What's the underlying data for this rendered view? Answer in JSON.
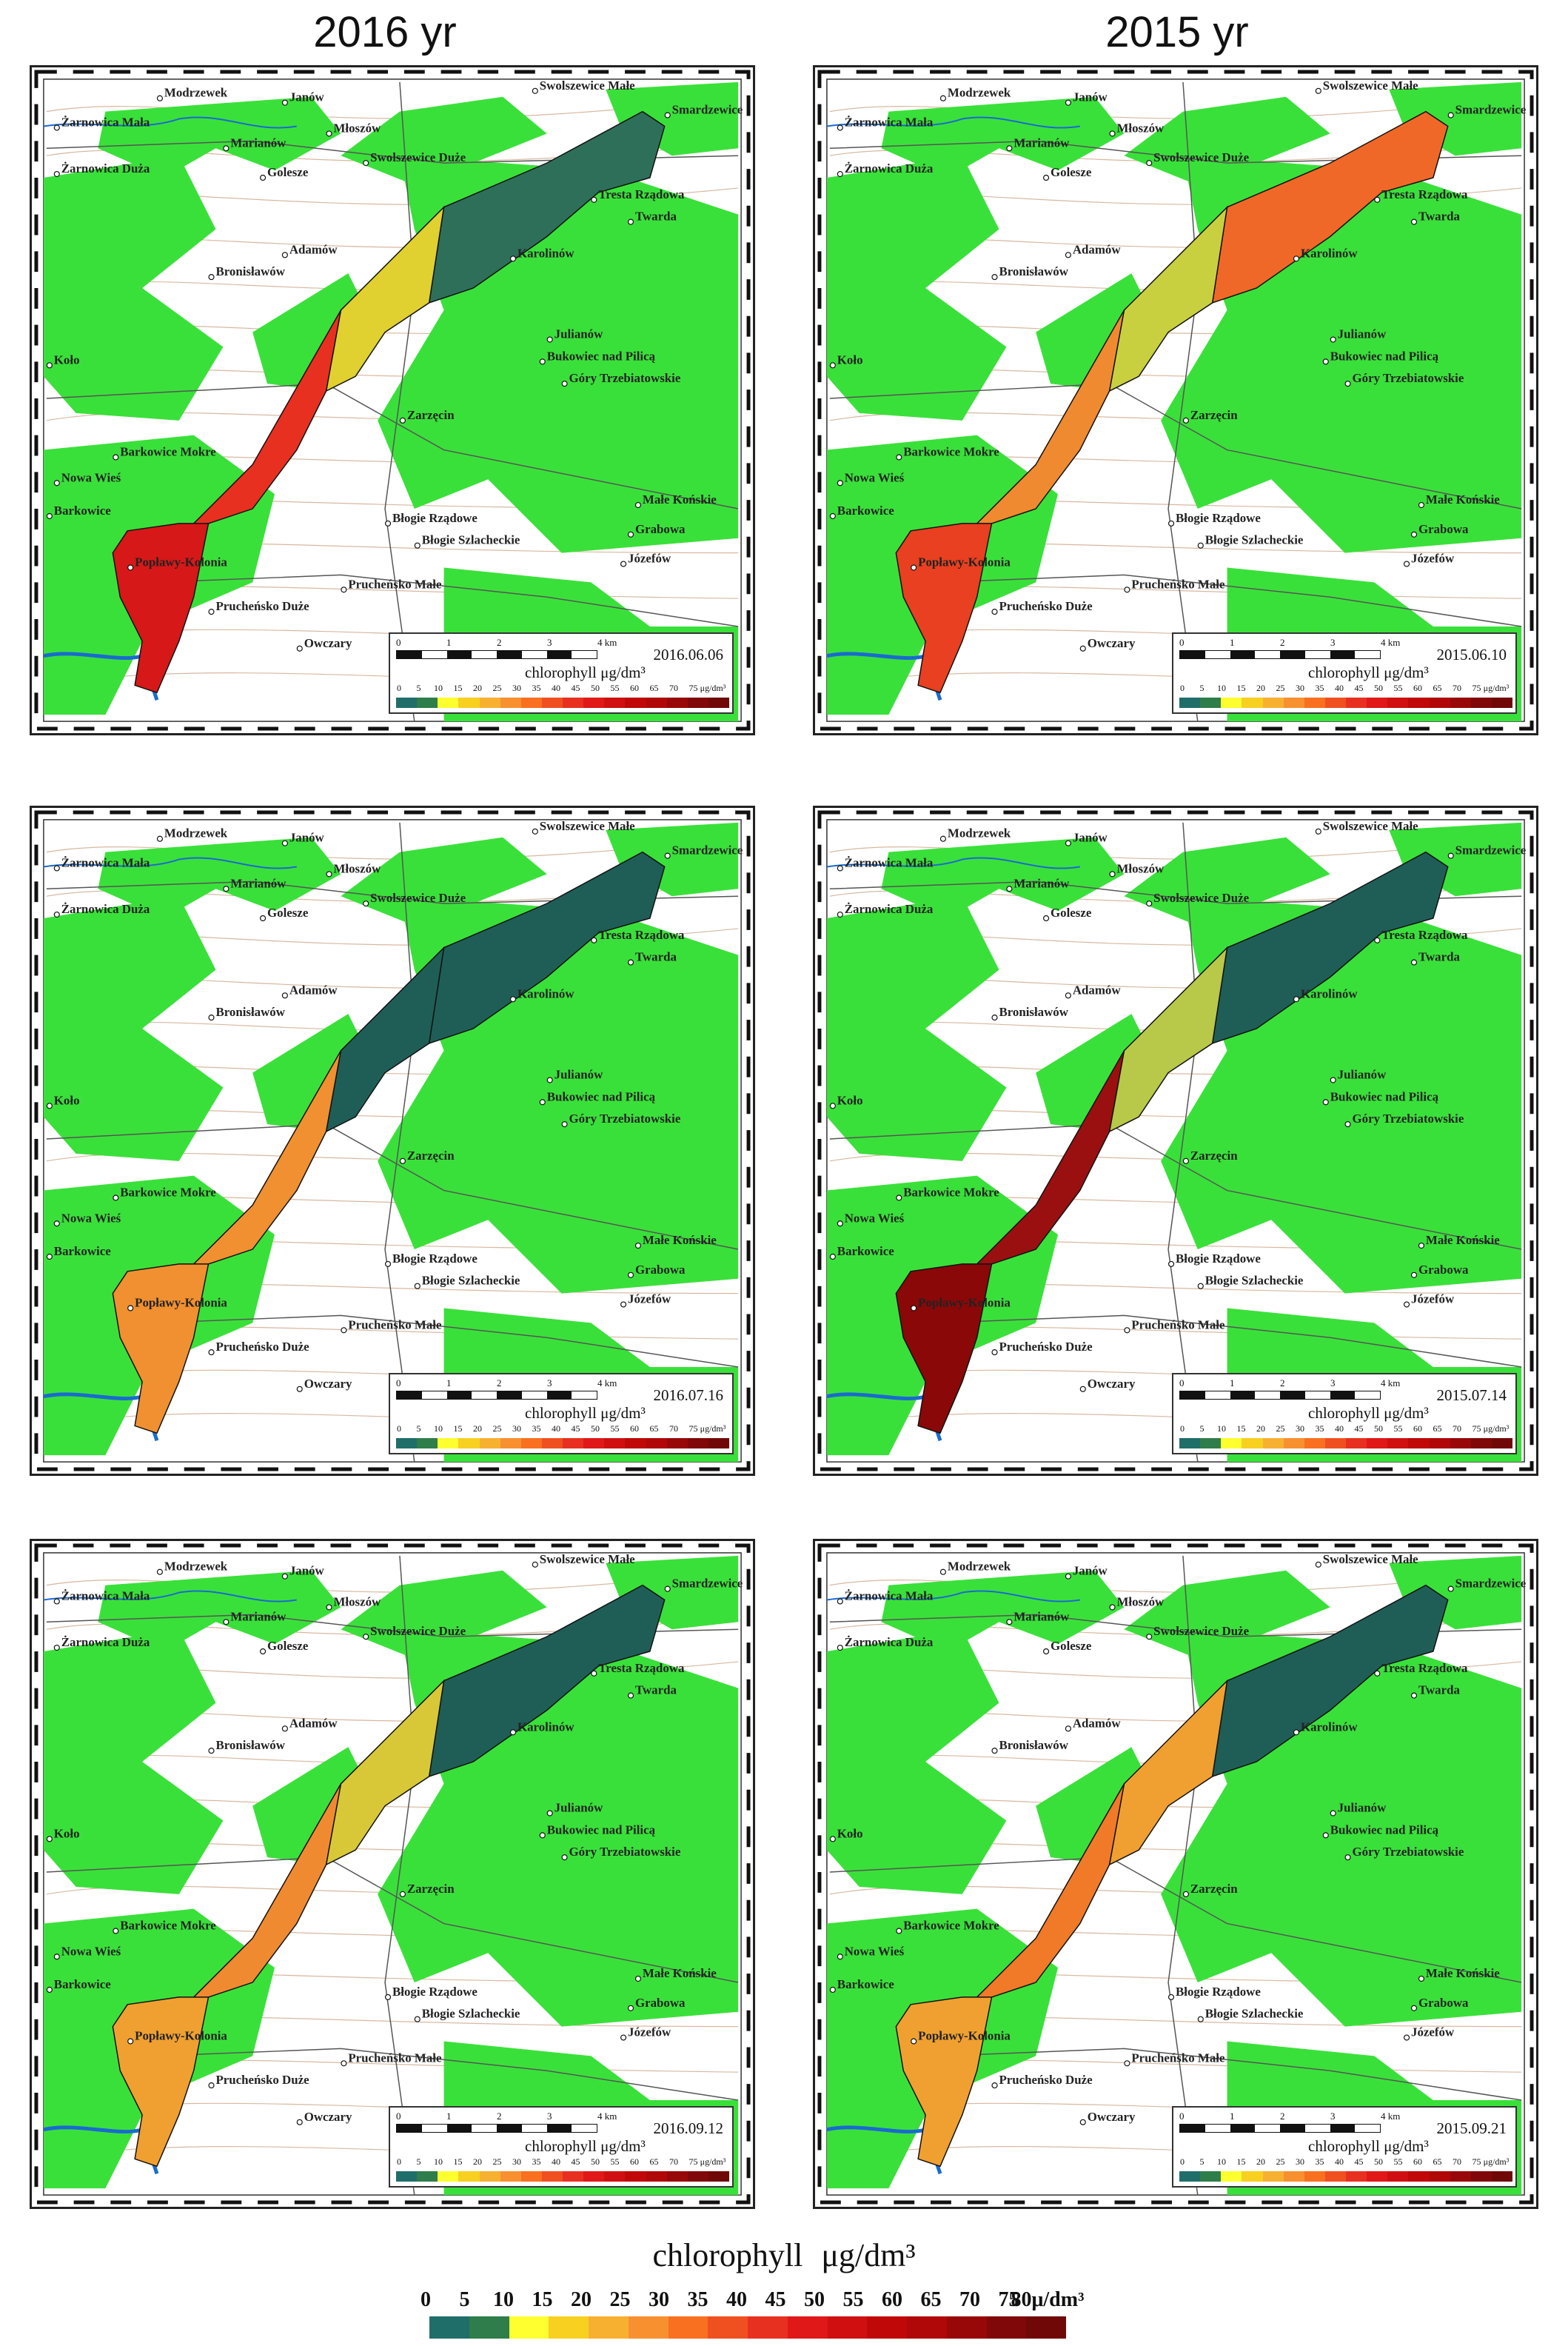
{
  "column_titles": [
    "2016 yr",
    "2015 yr"
  ],
  "place_names": [
    "Modrzewek",
    "Janów",
    "Swolszewice Małe",
    "Smardzewice",
    "Żarnowica Mała",
    "Młoszów",
    "Marianów",
    "Swolszewice Duże",
    "Żarnowica Duża",
    "Golesze",
    "Tresta Rządowa",
    "Twarda",
    "Adamów",
    "Karolinów",
    "Bronisławów",
    "Julianów",
    "Koło",
    "Bukowiec nad Pilicą",
    "Góry Trzebiatowskie",
    "Zarzęcin",
    "Barkowice Mokre",
    "Nowa Wieś",
    "Małe Końskie",
    "Barkowice",
    "Błogie Rządowe",
    "Grabowa",
    "Błogie Szlacheckie",
    "Józefów",
    "Popławy-Kolonia",
    "Pruchеńsko Małe",
    "Pruchеńsko Duże",
    "Owczary"
  ],
  "scale_labels": [
    "0",
    "1",
    "2",
    "3",
    "4 km"
  ],
  "legend_unit_label": "chlorophyll",
  "legend_unit": "μg/dm³",
  "legend_ticks_small": [
    "0",
    "5",
    "10",
    "15",
    "20",
    "25",
    "30",
    "35",
    "40",
    "45",
    "50",
    "55",
    "60",
    "65",
    "70",
    "75",
    "μg/dm³"
  ],
  "panels": [
    {
      "column": "2016 yr",
      "date": "2016.06.06",
      "upper": "#2e6f5a",
      "mid": "#e0d030",
      "lower": "#e83020",
      "south": "#d61818"
    },
    {
      "column": "2015 yr",
      "date": "2015.06.10",
      "upper": "#f06828",
      "mid": "#c8d040",
      "lower": "#f08a30",
      "south": "#e84020"
    },
    {
      "column": "2016 yr",
      "date": "2016.07.16",
      "upper": "#1f5e57",
      "mid": "#1f5e57",
      "lower": "#f09030",
      "south": "#f09030"
    },
    {
      "column": "2015 yr",
      "date": "2015.07.14",
      "upper": "#1f5e57",
      "mid": "#b8c848",
      "lower": "#9a1010",
      "south": "#8a0808"
    },
    {
      "column": "2016 yr",
      "date": "2016.09.12",
      "upper": "#1f5e57",
      "mid": "#d8c838",
      "lower": "#f08a30",
      "south": "#f0a030"
    },
    {
      "column": "2015 yr",
      "date": "2015.09.21",
      "upper": "#1f5e57",
      "mid": "#f0a030",
      "lower": "#f07a28",
      "south": "#f0a030"
    }
  ],
  "bottom_legend": {
    "title": "chlorophyll",
    "unit": "μg/dm³",
    "ticks": [
      "0",
      "5",
      "10",
      "15",
      "20",
      "25",
      "30",
      "35",
      "40",
      "45",
      "50",
      "55",
      "60",
      "65",
      "70",
      "75",
      "80μ/dm³"
    ],
    "colors": [
      "#1f6e6a",
      "#2e7d4a",
      "#ffff30",
      "#f8d020",
      "#f8b030",
      "#f89030",
      "#f87020",
      "#f05020",
      "#e83020",
      "#e01818",
      "#d01010",
      "#c00808",
      "#b00808",
      "#980808",
      "#800808",
      "#700808"
    ]
  },
  "palette": {
    "forest": "#3ae03a",
    "land": "#ffffff",
    "contour": "#d8b8a0",
    "road": "#555555",
    "river": "#1a6ad0"
  }
}
